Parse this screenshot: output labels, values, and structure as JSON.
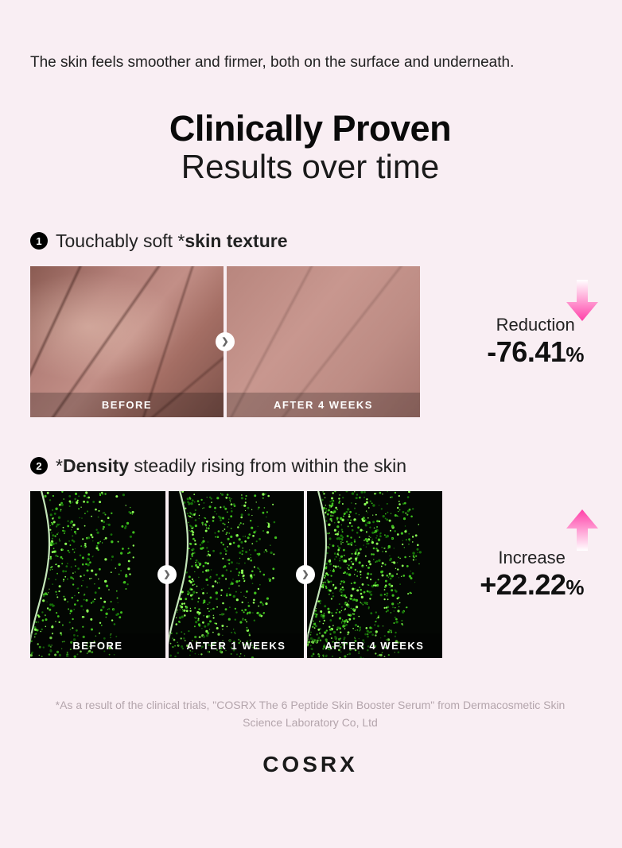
{
  "intro": "The skin feels smoother and firmer, both on the surface and underneath.",
  "title": {
    "line1": "Clinically Proven",
    "line2": "Results over time"
  },
  "section1": {
    "num": "1",
    "text_before": "Touchably soft *",
    "text_bold": "skin texture",
    "img_before_label": "BEFORE",
    "img_after_label": "AFTER 4 WEEKS",
    "stat_label": "Reduction",
    "stat_value": "-76.41",
    "stat_pct": "%",
    "arrow_color_top": "#ffffff",
    "arrow_color_bottom": "#ff3fa8"
  },
  "section2": {
    "num": "2",
    "text_before": "*",
    "text_bold": "Density",
    "text_after": " steadily rising from within the skin",
    "labels": [
      "BEFORE",
      "AFTER 1 WEEKS",
      "AFTER 4 WEEKS"
    ],
    "stat_label": "Increase",
    "stat_value": "+22.22",
    "stat_pct": "%",
    "arrow_color_top": "#ff3fa8",
    "arrow_color_bottom": "#ffffff",
    "density_fill": [
      0.3,
      0.4,
      0.55
    ]
  },
  "disclaimer": "*As a result of the clinical trials, \"COSRX The 6 Peptide Skin Booster Serum\" from Dermacosmetic Skin Science Laboratory Co, Ltd",
  "brand": "COSRX",
  "colors": {
    "bg": "#f9eef3",
    "green_hi": "#64ff3a",
    "green_lo": "#0d2a06"
  }
}
